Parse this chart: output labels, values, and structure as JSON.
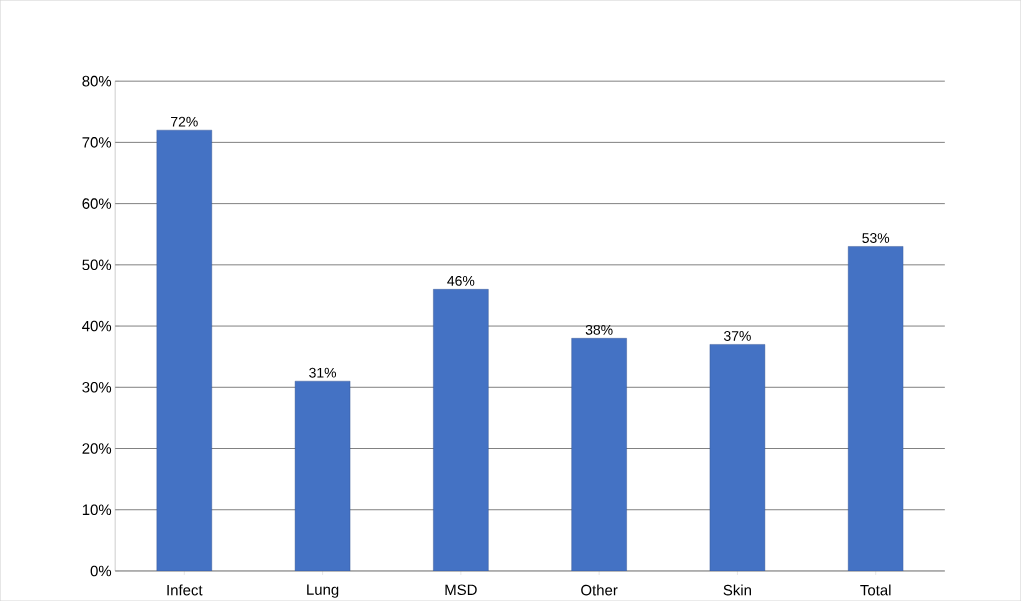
{
  "chart_data": {
    "type": "bar",
    "categories": [
      "Infect",
      "Lung",
      "MSD",
      "Other",
      "Skin",
      "Total"
    ],
    "values": [
      72,
      31,
      46,
      38,
      37,
      53
    ],
    "value_labels": [
      "72%",
      "31%",
      "46%",
      "38%",
      "37%",
      "53%"
    ],
    "color": "#4472c4",
    "ylim": [
      0,
      80
    ],
    "yticks": [
      {
        "value": 0,
        "label": "0%"
      },
      {
        "value": 10,
        "label": "10%"
      },
      {
        "value": 20,
        "label": "20%"
      },
      {
        "value": 30,
        "label": "30%"
      },
      {
        "value": 40,
        "label": "40%"
      },
      {
        "value": 50,
        "label": "50%"
      },
      {
        "value": 60,
        "label": "60%"
      },
      {
        "value": 70,
        "label": "70%"
      },
      {
        "value": 80,
        "label": "80%"
      }
    ],
    "grid": "y"
  }
}
